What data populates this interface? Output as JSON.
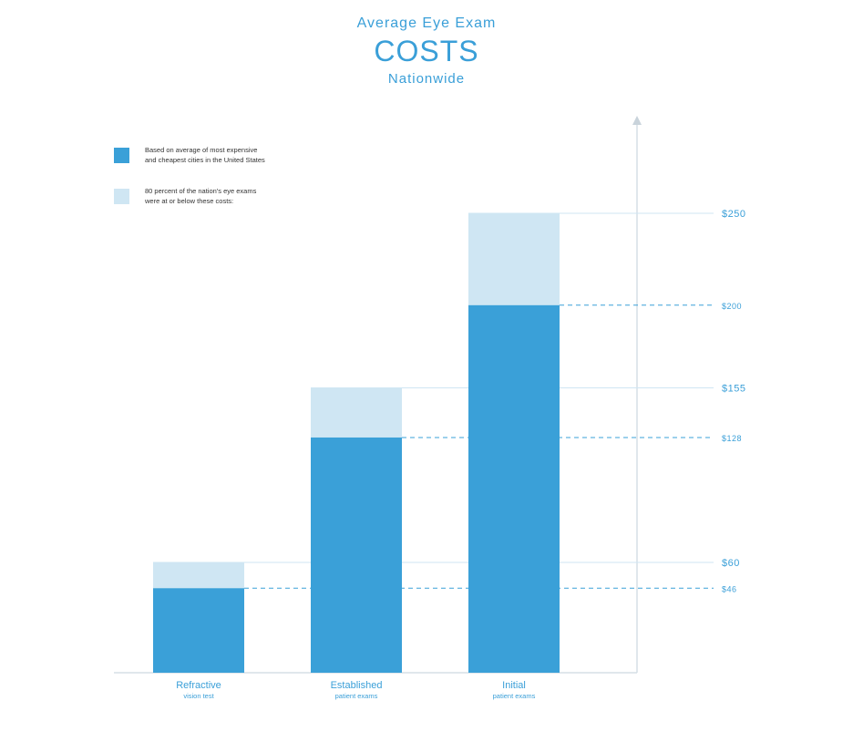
{
  "header": {
    "title_top": "Average Eye Exam",
    "title_main": "COSTS",
    "title_sub": "Nationwide"
  },
  "colors": {
    "dark": "#3aa0d8",
    "light": "#cfe6f3",
    "text": "#3a9fd8",
    "axis": "#d6dfe6"
  },
  "legend": [
    {
      "label_lines": [
        "Based on average of most expensive",
        "and cheapest cities in the United States"
      ],
      "color": "#3aa0d8",
      "series": "average"
    },
    {
      "label_lines": [
        "80 percent of the nation's eye exams",
        "were at or below these costs:"
      ],
      "color": "#cfe6f3",
      "series": "p80"
    }
  ],
  "chart_data": {
    "type": "bar",
    "title": "Average Eye Exam COSTS Nationwide",
    "categories": [
      {
        "main": "Refractive",
        "sub": "vision test"
      },
      {
        "main": "Established",
        "sub": "patient exams"
      },
      {
        "main": "Initial",
        "sub": "patient exams"
      }
    ],
    "series": [
      {
        "name": "Based on average of most expensive and cheapest cities in the United States",
        "values": [
          46,
          128,
          200
        ]
      },
      {
        "name": "80 percent of the nation's eye exams were at or below these costs:",
        "values": [
          60,
          155,
          250
        ]
      }
    ],
    "value_labels": {
      "average": [
        "$46",
        "$128",
        "$200"
      ],
      "p80": [
        "$60",
        "$155",
        "$250"
      ]
    },
    "ylim": [
      0,
      300
    ],
    "grid": false,
    "legend_position": "top-left"
  }
}
